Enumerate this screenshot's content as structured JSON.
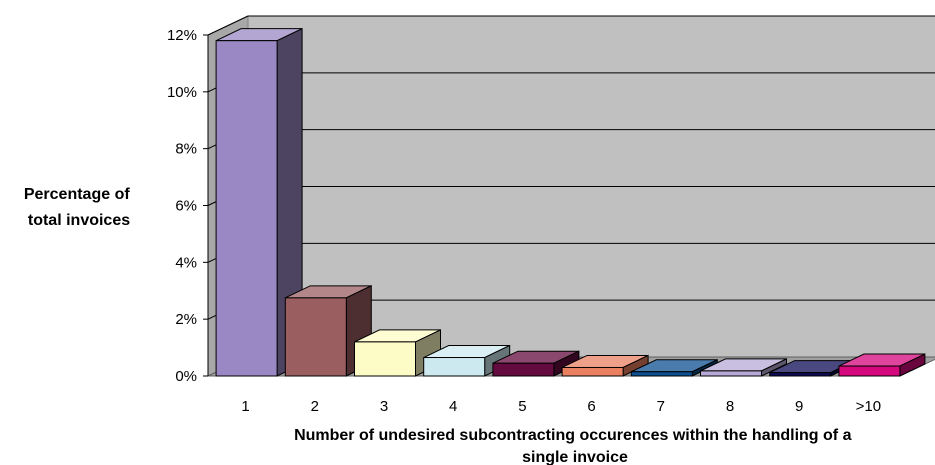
{
  "chart_data": {
    "type": "bar",
    "style": "3d-column",
    "categories": [
      "1",
      "2",
      "3",
      "4",
      "5",
      "6",
      "7",
      "8",
      "9",
      ">10"
    ],
    "values": [
      0.118,
      0.0275,
      0.012,
      0.0065,
      0.0045,
      0.003,
      0.0015,
      0.0018,
      0.0012,
      0.0035
    ],
    "bar_colors": [
      "#9a88c4",
      "#9a5e61",
      "#fdfcc6",
      "#cde9f0",
      "#630b3e",
      "#e98060",
      "#0c4f90",
      "#b7a9d5",
      "#0c0c55",
      "#d4077c"
    ],
    "ylim": [
      0,
      0.12
    ],
    "yticks": [
      0,
      0.02,
      0.04,
      0.06,
      0.08,
      0.1,
      0.12
    ],
    "ytick_labels": [
      "0%",
      "2%",
      "4%",
      "6%",
      "8%",
      "10%",
      "12%"
    ],
    "ylabel": [
      "Percentage of",
      "total invoices"
    ],
    "xlabel": [
      "Number of undesired subcontracting occurences within the handling of a",
      "single invoice"
    ],
    "grid": true,
    "wall_color": "#c0c0c0"
  }
}
